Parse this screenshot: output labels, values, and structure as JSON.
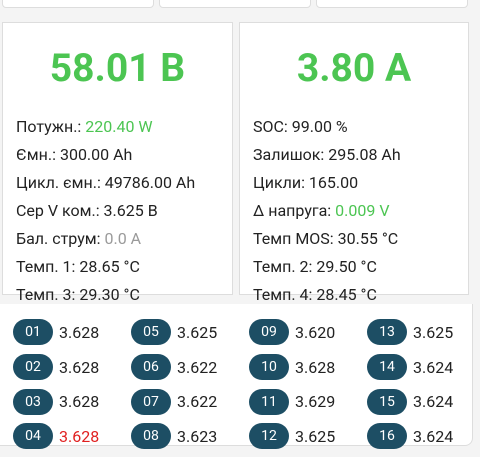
{
  "panels": [
    {
      "main": "58.01 В",
      "rows": [
        {
          "label": "Потужн.:",
          "value": "220.40 W",
          "color": "#4cc552"
        },
        {
          "label": "Ємн.:",
          "value": "300.00 Ah"
        },
        {
          "label": "Цикл. ємн.:",
          "value": "49786.00 Ah"
        },
        {
          "label": "Сер V ком.:",
          "value": "3.625 В"
        },
        {
          "label": "Бал. струм:",
          "value": "0.0 A",
          "color": "#9a9a9a"
        },
        {
          "label": "Темп. 1:",
          "value": "28.65 °C"
        },
        {
          "label": "Темп. 3:",
          "value": "29.30 °C"
        }
      ]
    },
    {
      "main": "3.80 A",
      "rows": [
        {
          "label": "SOC:",
          "value": "99.00 %"
        },
        {
          "label": "Залишок:",
          "value": "295.08 Ah"
        },
        {
          "label": "Цикли:",
          "value": "165.00"
        },
        {
          "label": "Δ напруга:",
          "value": "0.009 V",
          "color": "#4cc552"
        },
        {
          "label": "Темп MOS:",
          "value": "30.55 °C"
        },
        {
          "label": "Темп. 2:",
          "value": "29.50 °C"
        },
        {
          "label": "Темп. 4:",
          "value": "28.45 °C"
        }
      ]
    }
  ],
  "cells": [
    {
      "id": "01",
      "value": "3.628"
    },
    {
      "id": "02",
      "value": "3.628"
    },
    {
      "id": "03",
      "value": "3.628"
    },
    {
      "id": "04",
      "value": "3.628",
      "color": "#e02020"
    },
    {
      "id": "05",
      "value": "3.625"
    },
    {
      "id": "06",
      "value": "3.622"
    },
    {
      "id": "07",
      "value": "3.622"
    },
    {
      "id": "08",
      "value": "3.623"
    },
    {
      "id": "09",
      "value": "3.620"
    },
    {
      "id": "10",
      "value": "3.628"
    },
    {
      "id": "11",
      "value": "3.629"
    },
    {
      "id": "12",
      "value": "3.625"
    },
    {
      "id": "13",
      "value": "3.625"
    },
    {
      "id": "14",
      "value": "3.624"
    },
    {
      "id": "15",
      "value": "3.624"
    },
    {
      "id": "16",
      "value": "3.624"
    }
  ]
}
